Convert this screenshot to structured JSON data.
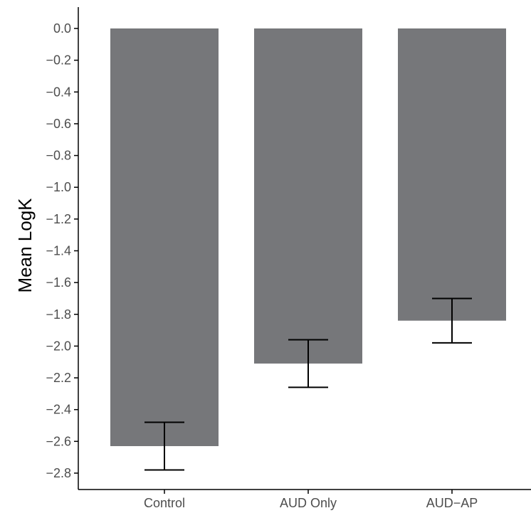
{
  "chart_data": {
    "type": "bar",
    "title": "",
    "xlabel": "",
    "ylabel": "Mean LogK",
    "categories": [
      "Control",
      "AUD Only",
      "AUD−AP"
    ],
    "values": [
      -2.63,
      -2.11,
      -1.84
    ],
    "error_bars": [
      {
        "low": -2.78,
        "high": -2.48
      },
      {
        "low": -2.26,
        "high": -1.96
      },
      {
        "low": -1.98,
        "high": -1.7
      }
    ],
    "ylim": [
      -2.9,
      0.1
    ],
    "yticks": [
      0.0,
      -0.2,
      -0.4,
      -0.6,
      -0.8,
      -1.0,
      -1.2,
      -1.4,
      -1.6,
      -1.8,
      -2.0,
      -2.2,
      -2.4,
      -2.6,
      -2.8
    ],
    "ytick_labels": [
      "0.0",
      "−0.2",
      "−0.4",
      "−0.6",
      "−0.8",
      "−1.0",
      "−1.2",
      "−1.4",
      "−1.6",
      "−1.8",
      "−2.0",
      "−2.2",
      "−2.4",
      "−2.6",
      "−2.8"
    ],
    "grid": false,
    "legend": "none",
    "colors": {
      "bar": "#76777a",
      "error_bar": "#000000",
      "axis": "#000000"
    }
  }
}
